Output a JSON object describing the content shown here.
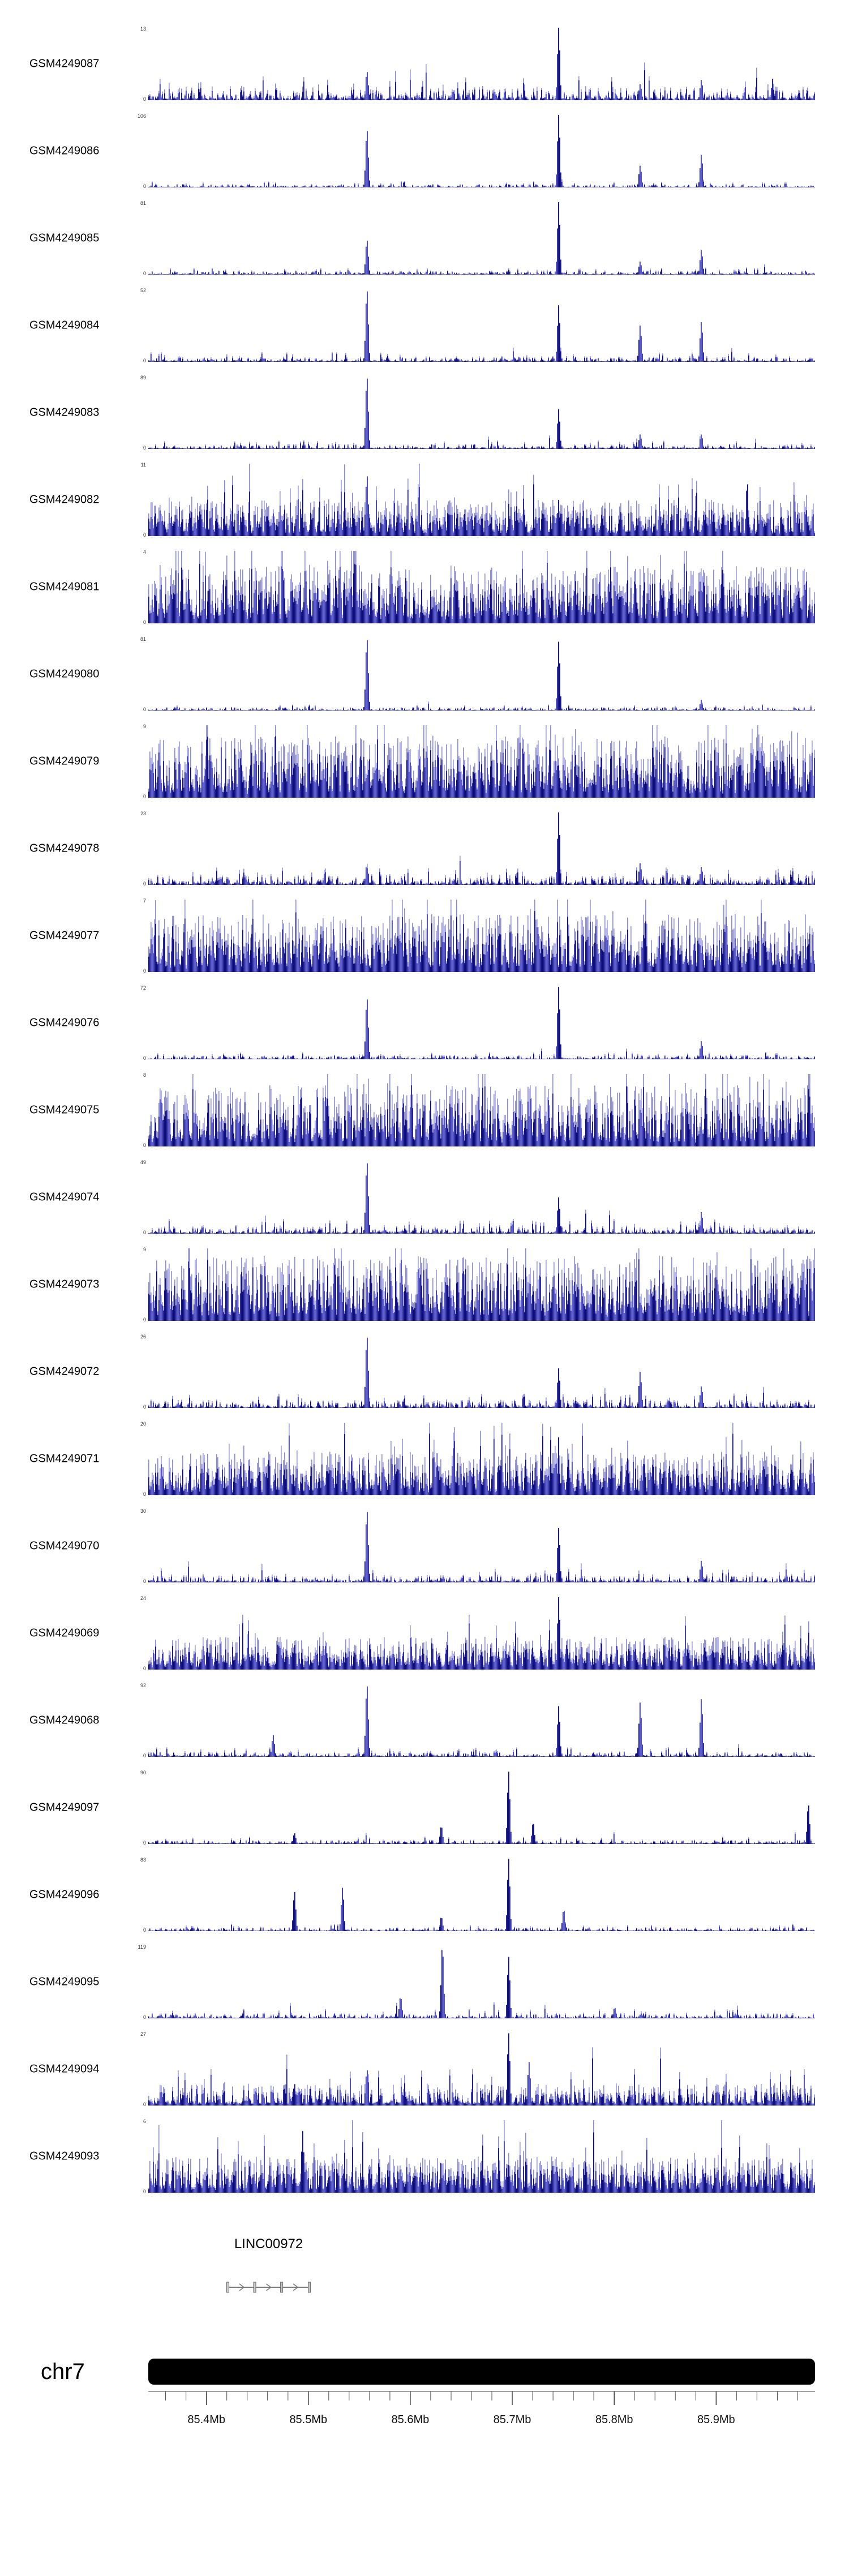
{
  "page": {
    "background": "#ffffff"
  },
  "chart_data": {
    "type": "genome-coverage-tracks",
    "region": {
      "chrom": "chr7",
      "start_mb": 85.343,
      "end_mb": 85.997
    },
    "colors": {
      "bar_dark": "#0a0a91",
      "bar_light": "#8f8fd0",
      "ideogram": "#000000",
      "axis": "#444444",
      "gene_line": "#7a7a7a",
      "gene_fill": "#c8c8c8",
      "gene_border": "#666666"
    },
    "tracks": [
      {
        "label": "GSM4249087",
        "ymax": 13,
        "ymin": 0,
        "baseline": 0.2,
        "seed": 11,
        "peaks": [
          [
            85.557,
            0.4
          ],
          [
            85.745,
            1.0
          ],
          [
            85.825,
            0.22
          ],
          [
            85.885,
            0.28
          ],
          [
            85.955,
            0.3
          ]
        ]
      },
      {
        "label": "GSM4249086",
        "ymax": 106,
        "ymin": 0,
        "baseline": 0.05,
        "seed": 12,
        "peaks": [
          [
            85.557,
            0.8
          ],
          [
            85.745,
            1.0
          ],
          [
            85.825,
            0.3
          ],
          [
            85.885,
            0.45
          ]
        ]
      },
      {
        "label": "GSM4249085",
        "ymax": 81,
        "ymin": 0,
        "baseline": 0.06,
        "seed": 13,
        "peaks": [
          [
            85.557,
            0.48
          ],
          [
            85.745,
            1.0
          ],
          [
            85.825,
            0.18
          ],
          [
            85.885,
            0.34
          ]
        ]
      },
      {
        "label": "GSM4249084",
        "ymax": 52,
        "ymin": 0,
        "baseline": 0.08,
        "seed": 14,
        "peaks": [
          [
            85.557,
            1.0
          ],
          [
            85.745,
            0.78
          ],
          [
            85.825,
            0.5
          ],
          [
            85.885,
            0.55
          ]
        ]
      },
      {
        "label": "GSM4249083",
        "ymax": 89,
        "ymin": 0,
        "baseline": 0.07,
        "seed": 15,
        "peaks": [
          [
            85.557,
            1.0
          ],
          [
            85.745,
            0.55
          ],
          [
            85.825,
            0.2
          ],
          [
            85.885,
            0.2
          ]
        ]
      },
      {
        "label": "GSM4249082",
        "ymax": 11,
        "ymin": 0,
        "baseline": 0.5,
        "seed": 16,
        "peaks": [
          [
            85.557,
            0.85
          ],
          [
            85.745,
            0.5
          ],
          [
            85.93,
            0.75
          ]
        ]
      },
      {
        "label": "GSM4249081",
        "ymax": 4,
        "ymin": 0,
        "baseline": 0.8,
        "seed": 17,
        "peaks": []
      },
      {
        "label": "GSM4249080",
        "ymax": 81,
        "ymin": 0,
        "baseline": 0.05,
        "seed": 18,
        "peaks": [
          [
            85.557,
            1.0
          ],
          [
            85.745,
            0.95
          ],
          [
            85.885,
            0.15
          ]
        ]
      },
      {
        "label": "GSM4249079",
        "ymax": 9,
        "ymin": 0,
        "baseline": 0.85,
        "seed": 19,
        "peaks": []
      },
      {
        "label": "GSM4249078",
        "ymax": 23,
        "ymin": 0,
        "baseline": 0.15,
        "seed": 20,
        "peaks": [
          [
            85.557,
            0.3
          ],
          [
            85.745,
            1.0
          ],
          [
            85.825,
            0.3
          ],
          [
            85.885,
            0.25
          ]
        ]
      },
      {
        "label": "GSM4249077",
        "ymax": 7,
        "ymin": 0,
        "baseline": 0.8,
        "seed": 21,
        "peaks": []
      },
      {
        "label": "GSM4249076",
        "ymax": 72,
        "ymin": 0,
        "baseline": 0.06,
        "seed": 22,
        "peaks": [
          [
            85.557,
            0.85
          ],
          [
            85.745,
            1.0
          ],
          [
            85.885,
            0.25
          ]
        ]
      },
      {
        "label": "GSM4249075",
        "ymax": 8,
        "ymin": 0,
        "baseline": 0.85,
        "seed": 23,
        "peaks": []
      },
      {
        "label": "GSM4249074",
        "ymax": 49,
        "ymin": 0,
        "baseline": 0.12,
        "seed": 24,
        "peaks": [
          [
            85.557,
            1.0
          ],
          [
            85.745,
            0.5
          ],
          [
            85.885,
            0.3
          ]
        ]
      },
      {
        "label": "GSM4249073",
        "ymax": 9,
        "ymin": 0,
        "baseline": 0.9,
        "seed": 25,
        "peaks": []
      },
      {
        "label": "GSM4249072",
        "ymax": 26,
        "ymin": 0,
        "baseline": 0.12,
        "seed": 26,
        "peaks": [
          [
            85.557,
            1.0
          ],
          [
            85.745,
            0.55
          ],
          [
            85.825,
            0.5
          ],
          [
            85.885,
            0.3
          ]
        ]
      },
      {
        "label": "GSM4249071",
        "ymax": 20,
        "ymin": 0,
        "baseline": 0.6,
        "seed": 27,
        "peaks": [
          [
            85.745,
            0.8
          ]
        ]
      },
      {
        "label": "GSM4249070",
        "ymax": 30,
        "ymin": 0,
        "baseline": 0.12,
        "seed": 28,
        "peaks": [
          [
            85.557,
            1.0
          ],
          [
            85.745,
            0.75
          ],
          [
            85.885,
            0.3
          ]
        ]
      },
      {
        "label": "GSM4249069",
        "ymax": 24,
        "ymin": 0,
        "baseline": 0.45,
        "seed": 29,
        "peaks": [
          [
            85.745,
            1.0
          ]
        ]
      },
      {
        "label": "GSM4249068",
        "ymax": 92,
        "ymin": 0,
        "baseline": 0.08,
        "seed": 30,
        "peaks": [
          [
            85.465,
            0.3
          ],
          [
            85.557,
            1.0
          ],
          [
            85.745,
            0.7
          ],
          [
            85.825,
            0.75
          ],
          [
            85.885,
            0.8
          ]
        ]
      },
      {
        "label": "GSM4249097",
        "ymax": 90,
        "ymin": 0,
        "baseline": 0.06,
        "seed": 31,
        "peaks": [
          [
            85.486,
            0.15
          ],
          [
            85.63,
            0.25
          ],
          [
            85.696,
            1.0
          ],
          [
            85.72,
            0.3
          ],
          [
            85.99,
            0.55
          ]
        ]
      },
      {
        "label": "GSM4249096",
        "ymax": 83,
        "ymin": 0,
        "baseline": 0.06,
        "seed": 32,
        "peaks": [
          [
            85.486,
            0.55
          ],
          [
            85.533,
            0.6
          ],
          [
            85.63,
            0.2
          ],
          [
            85.696,
            1.0
          ],
          [
            85.75,
            0.3
          ]
        ]
      },
      {
        "label": "GSM4249095",
        "ymax": 119,
        "ymin": 0,
        "baseline": 0.08,
        "seed": 33,
        "peaks": [
          [
            85.59,
            0.3
          ],
          [
            85.631,
            1.0
          ],
          [
            85.696,
            0.85
          ],
          [
            85.8,
            0.15
          ]
        ]
      },
      {
        "label": "GSM4249094",
        "ymax": 27,
        "ymin": 0,
        "baseline": 0.3,
        "seed": 34,
        "peaks": [
          [
            85.486,
            0.3
          ],
          [
            85.557,
            0.5
          ],
          [
            85.696,
            1.0
          ],
          [
            85.716,
            0.6
          ]
        ]
      },
      {
        "label": "GSM4249093",
        "ymax": 6,
        "ymin": 0,
        "baseline": 0.5,
        "seed": 35,
        "peaks": [
          [
            85.494,
            0.85
          ],
          [
            85.63,
            0.45
          ],
          [
            85.696,
            0.55
          ]
        ]
      }
    ],
    "gene_track": {
      "name": "LINC00972",
      "start_mb": 85.421,
      "end_mb": 85.501,
      "strand": "+"
    },
    "ideogram": {
      "label": "chr7"
    },
    "axis": {
      "minor_start": 85.36,
      "minor_end": 85.98,
      "minor_step": 0.02,
      "ticks": [
        {
          "mb": 85.4,
          "label": "85.4Mb"
        },
        {
          "mb": 85.5,
          "label": "85.5Mb"
        },
        {
          "mb": 85.6,
          "label": "85.6Mb"
        },
        {
          "mb": 85.7,
          "label": "85.7Mb"
        },
        {
          "mb": 85.8,
          "label": "85.8Mb"
        },
        {
          "mb": 85.9,
          "label": "85.9Mb"
        }
      ]
    }
  }
}
